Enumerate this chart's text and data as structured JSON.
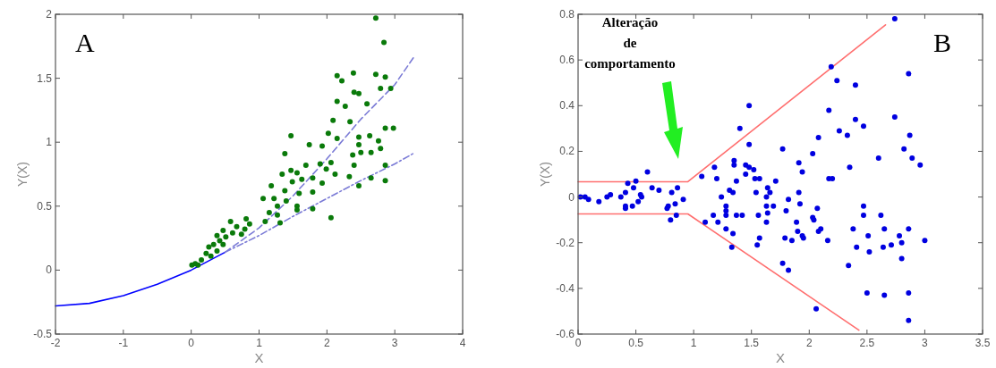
{
  "chart_data": [
    {
      "type": "scatter",
      "xlabel": "X",
      "ylabel": "Y(X)",
      "annotations": [
        "A"
      ],
      "xlim": [
        -2,
        4
      ],
      "ylim": [
        -0.5,
        2
      ],
      "xticks": [
        -2,
        -1,
        0,
        1,
        2,
        3,
        4
      ],
      "yticks": [
        -0.5,
        0,
        0.5,
        1,
        1.5,
        2
      ],
      "grid": false,
      "series": [
        {
          "type": "line",
          "color": "#0000ff",
          "line_style": "solid",
          "marker": "none",
          "x": [
            -2,
            -1.5,
            -1,
            -0.5,
            0,
            0.5
          ],
          "values": [
            -0.28,
            -0.26,
            -0.2,
            -0.11,
            0,
            0.14
          ]
        },
        {
          "type": "line",
          "color": "#7b7bd6",
          "line_style": "dashed",
          "marker": "none",
          "x": [
            0.5,
            1,
            1.5,
            2,
            2.5,
            3,
            3.3
          ],
          "values": [
            0.14,
            0.33,
            0.58,
            0.87,
            1.18,
            1.45,
            1.68
          ]
        },
        {
          "type": "line",
          "color": "#7b7bd6",
          "line_style": "dashdot",
          "marker": "none",
          "x": [
            0.5,
            1,
            1.5,
            2,
            2.5,
            3,
            3.3
          ],
          "values": [
            0.14,
            0.27,
            0.42,
            0.56,
            0.7,
            0.83,
            0.92
          ]
        },
        {
          "color": "#0a7a0a",
          "marker": "circle",
          "x": [
            2.72,
            2.84,
            2.15,
            2.22,
            2.39,
            2.72,
            2.86,
            2.4,
            2.47,
            2.59,
            2.79,
            2.94,
            2.15,
            2.27,
            2.09,
            2.34,
            2.15,
            2.02,
            1.47,
            2.86,
            2.98,
            2.47,
            2.47,
            2.63,
            2.76,
            1.74,
            1.93,
            2.5,
            2.38,
            2.65,
            2.79,
            1.38,
            2.06,
            1.9,
            2.4,
            2.86,
            1.69,
            1.99,
            2.12,
            1.47,
            1.34,
            1.56,
            2.33,
            2.65,
            1.79,
            1.63,
            1.49,
            1.93,
            2.86,
            2.47,
            1.18,
            1.38,
            1.59,
            1.79,
            1.06,
            1.22,
            1.4,
            1.27,
            1.56,
            1.79,
            1.56,
            2.06,
            1.15,
            1.27,
            1.09,
            1.31,
            0.81,
            0.58,
            0.86,
            0.67,
            0.79,
            0.47,
            0.61,
            0.74,
            0.38,
            0.51,
            0.42,
            0.33,
            0.47,
            0.26,
            0.38,
            0.22,
            0.29,
            0.15,
            0.06,
            0.01,
            0.1
          ],
          "values": [
            1.97,
            1.78,
            1.52,
            1.48,
            1.54,
            1.53,
            1.51,
            1.39,
            1.38,
            1.3,
            1.42,
            1.42,
            1.32,
            1.28,
            1.17,
            1.16,
            1.03,
            1.07,
            1.05,
            1.11,
            1.11,
            1.04,
            0.98,
            1.05,
            1.01,
            0.98,
            0.97,
            0.92,
            0.9,
            0.92,
            0.95,
            0.91,
            0.84,
            0.83,
            0.82,
            0.82,
            0.82,
            0.79,
            0.75,
            0.78,
            0.75,
            0.76,
            0.73,
            0.72,
            0.72,
            0.71,
            0.69,
            0.68,
            0.7,
            0.66,
            0.66,
            0.62,
            0.6,
            0.61,
            0.56,
            0.56,
            0.54,
            0.5,
            0.5,
            0.48,
            0.47,
            0.41,
            0.45,
            0.43,
            0.38,
            0.37,
            0.4,
            0.38,
            0.36,
            0.34,
            0.32,
            0.31,
            0.29,
            0.28,
            0.27,
            0.26,
            0.23,
            0.2,
            0.2,
            0.18,
            0.15,
            0.13,
            0.11,
            0.08,
            0.05,
            0.04,
            0.04
          ]
        }
      ]
    },
    {
      "type": "scatter",
      "xlabel": "X",
      "ylabel": "Y(X)",
      "annotations": [
        "B",
        "Alteração de comportamento"
      ],
      "xlim": [
        0,
        3.5
      ],
      "ylim": [
        -0.6,
        0.8
      ],
      "xticks": [
        0,
        0.5,
        1,
        1.5,
        2,
        2.5,
        3,
        3.5
      ],
      "yticks": [
        -0.6,
        -0.4,
        -0.2,
        0,
        0.2,
        0.4,
        0.6,
        0.8
      ],
      "grid": false,
      "series": [
        {
          "type": "line",
          "color": "#ff6f6f",
          "line_style": "solid",
          "marker": "none",
          "x": [
            0,
            0.95,
            2.66
          ],
          "values": [
            0.067,
            0.067,
            0.754
          ]
        },
        {
          "type": "line",
          "color": "#ff6f6f",
          "line_style": "solid",
          "marker": "none",
          "x": [
            0,
            0.95,
            2.43
          ],
          "values": [
            -0.074,
            -0.074,
            -0.583
          ]
        },
        {
          "color": "#0000e0",
          "marker": "circle",
          "x": [
            2.74,
            2.19,
            2.86,
            2.24,
            2.4,
            1.48,
            2.17,
            2.4,
            2.74,
            2.47,
            1.4,
            2.26,
            2.33,
            2.08,
            2.87,
            1.48,
            1.77,
            2.03,
            2.82,
            2.6,
            2.89,
            2.96,
            2.35,
            1.35,
            1.35,
            1.45,
            1.48,
            1.18,
            1.91,
            1.94,
            0.6,
            1.52,
            1.45,
            1.07,
            1.2,
            1.37,
            1.53,
            1.57,
            1.71,
            2.17,
            2.2,
            0.5,
            0.43,
            0.48,
            0.64,
            0.7,
            0.86,
            0.81,
            1.31,
            1.34,
            1.54,
            1.64,
            1.66,
            1.91,
            0.02,
            0.06,
            0.09,
            0.18,
            0.25,
            0.28,
            0.37,
            0.41,
            0.54,
            0.55,
            0.52,
            0.47,
            0.41,
            0.41,
            0.91,
            0.84,
            0.78,
            0.77,
            0.85,
            0.8,
            1.24,
            1.63,
            1.82,
            1.63,
            1.69,
            1.28,
            1.28,
            1.28,
            1.37,
            1.42,
            1.64,
            1.92,
            2.07,
            2.03,
            2.04,
            2.47,
            2.47,
            2.62,
            1.8,
            1.17,
            1.1,
            1.21,
            1.56,
            1.63,
            1.89,
            1.28,
            1.34,
            2.1,
            2.08,
            1.9,
            1.94,
            1.95,
            1.57,
            2.38,
            2.65,
            2.86,
            1.79,
            1.85,
            2.16,
            2.51,
            2.78,
            3,
            2.71,
            2.8,
            2.41,
            2.64,
            1.55,
            1.33,
            2.52,
            2.8,
            2.34,
            1.77,
            1.82,
            2.5,
            2.65,
            2.86,
            2.06,
            2.86
          ],
          "values": [
            0.78,
            0.57,
            0.54,
            0.51,
            0.49,
            0.4,
            0.38,
            0.34,
            0.35,
            0.31,
            0.3,
            0.29,
            0.27,
            0.26,
            0.27,
            0.23,
            0.21,
            0.19,
            0.21,
            0.17,
            0.17,
            0.14,
            0.13,
            0.16,
            0.14,
            0.14,
            0.13,
            0.13,
            0.15,
            0.11,
            0.11,
            0.12,
            0.1,
            0.09,
            0.08,
            0.07,
            0.08,
            0.08,
            0.07,
            0.08,
            0.08,
            0.07,
            0.06,
            0.04,
            0.04,
            0.03,
            0.04,
            0.02,
            0.03,
            0.02,
            0.02,
            0.04,
            0.02,
            0.02,
            0,
            0,
            -0.01,
            -0.02,
            0,
            0.01,
            0,
            0.02,
            0.01,
            0,
            -0.02,
            -0.04,
            -0.04,
            -0.05,
            -0.01,
            -0.03,
            -0.04,
            -0.05,
            -0.08,
            -0.1,
            0,
            0,
            -0.01,
            -0.04,
            -0.04,
            -0.04,
            -0.06,
            -0.08,
            -0.08,
            -0.08,
            -0.07,
            -0.03,
            -0.05,
            -0.09,
            -0.1,
            -0.04,
            -0.08,
            -0.08,
            -0.06,
            -0.08,
            -0.11,
            -0.11,
            -0.08,
            -0.11,
            -0.11,
            -0.14,
            -0.16,
            -0.14,
            -0.15,
            -0.15,
            -0.17,
            -0.18,
            -0.18,
            -0.14,
            -0.14,
            -0.14,
            -0.18,
            -0.19,
            -0.19,
            -0.17,
            -0.17,
            -0.19,
            -0.21,
            -0.2,
            -0.22,
            -0.22,
            -0.21,
            -0.22,
            -0.24,
            -0.27,
            -0.3,
            -0.29,
            -0.32,
            -0.42,
            -0.43,
            -0.42,
            -0.49,
            -0.54
          ]
        }
      ]
    }
  ]
}
